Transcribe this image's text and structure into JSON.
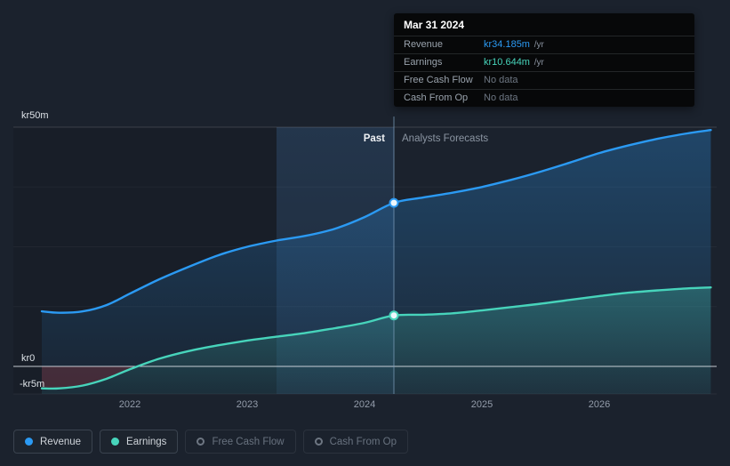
{
  "tooltip": {
    "date": "Mar 31 2024",
    "rows": [
      {
        "label": "Revenue",
        "value": "kr34.185m",
        "suffix": " /yr",
        "color": "#2b9af3"
      },
      {
        "label": "Earnings",
        "value": "kr10.644m",
        "suffix": " /yr",
        "color": "#47d4bb"
      },
      {
        "label": "Free Cash Flow",
        "value": "No data",
        "suffix": "",
        "color": "#6d7682"
      },
      {
        "label": "Cash From Op",
        "value": "No data",
        "suffix": "",
        "color": "#6d7682"
      }
    ]
  },
  "chart_data": {
    "type": "area",
    "unit": "kr millions per year",
    "past_label": "Past",
    "forecast_label": "Analysts Forecasts",
    "past_until": 2024.25,
    "ylim": [
      -6,
      55
    ],
    "legend_position": "bottom",
    "grid": true,
    "y_ticks": [
      {
        "value": 50,
        "label": "kr50m"
      },
      {
        "value": 0,
        "label": "kr0"
      },
      {
        "value": -5,
        "label": "-kr5m"
      }
    ],
    "x_ticks": [
      {
        "value": 2022,
        "label": "2022"
      },
      {
        "value": 2023,
        "label": "2023"
      },
      {
        "value": 2024,
        "label": "2024"
      },
      {
        "value": 2025,
        "label": "2025"
      },
      {
        "value": 2026,
        "label": "2026"
      }
    ],
    "x": [
      2021.25,
      2021.4,
      2021.6,
      2021.8,
      2022.0,
      2022.25,
      2022.5,
      2022.75,
      2023.0,
      2023.25,
      2023.5,
      2023.75,
      2024.0,
      2024.25,
      2024.5,
      2024.75,
      2025.0,
      2025.25,
      2025.5,
      2025.75,
      2026.0,
      2026.25,
      2026.5,
      2026.75,
      2026.95
    ],
    "series": [
      {
        "name": "Revenue",
        "color": "#2b9af3",
        "marker_value": 34.185,
        "values": [
          11.5,
          11.2,
          11.5,
          12.8,
          15.2,
          18.2,
          20.8,
          23.2,
          25.0,
          26.3,
          27.3,
          28.8,
          31.2,
          34.185,
          35.3,
          36.3,
          37.5,
          39.0,
          40.7,
          42.6,
          44.6,
          46.2,
          47.6,
          48.7,
          49.4
        ]
      },
      {
        "name": "Earnings",
        "color": "#47d4bb",
        "marker_value": 10.644,
        "values": [
          -4.6,
          -4.6,
          -4.0,
          -2.6,
          -0.6,
          1.6,
          3.2,
          4.4,
          5.4,
          6.2,
          7.0,
          8.0,
          9.1,
          10.644,
          10.8,
          11.1,
          11.7,
          12.4,
          13.1,
          13.9,
          14.7,
          15.4,
          15.9,
          16.3,
          16.5
        ]
      }
    ],
    "negative_fill_color": "#b43c46",
    "highlight_band": [
      2023.25,
      2024.25
    ]
  },
  "legend": [
    {
      "label": "Revenue",
      "color": "#2b9af3",
      "filled": true,
      "active": true
    },
    {
      "label": "Earnings",
      "color": "#47d4bb",
      "filled": true,
      "active": true
    },
    {
      "label": "Free Cash Flow",
      "color": "#6d7682",
      "filled": false,
      "active": false
    },
    {
      "label": "Cash From Op",
      "color": "#6d7682",
      "filled": false,
      "active": false
    }
  ]
}
